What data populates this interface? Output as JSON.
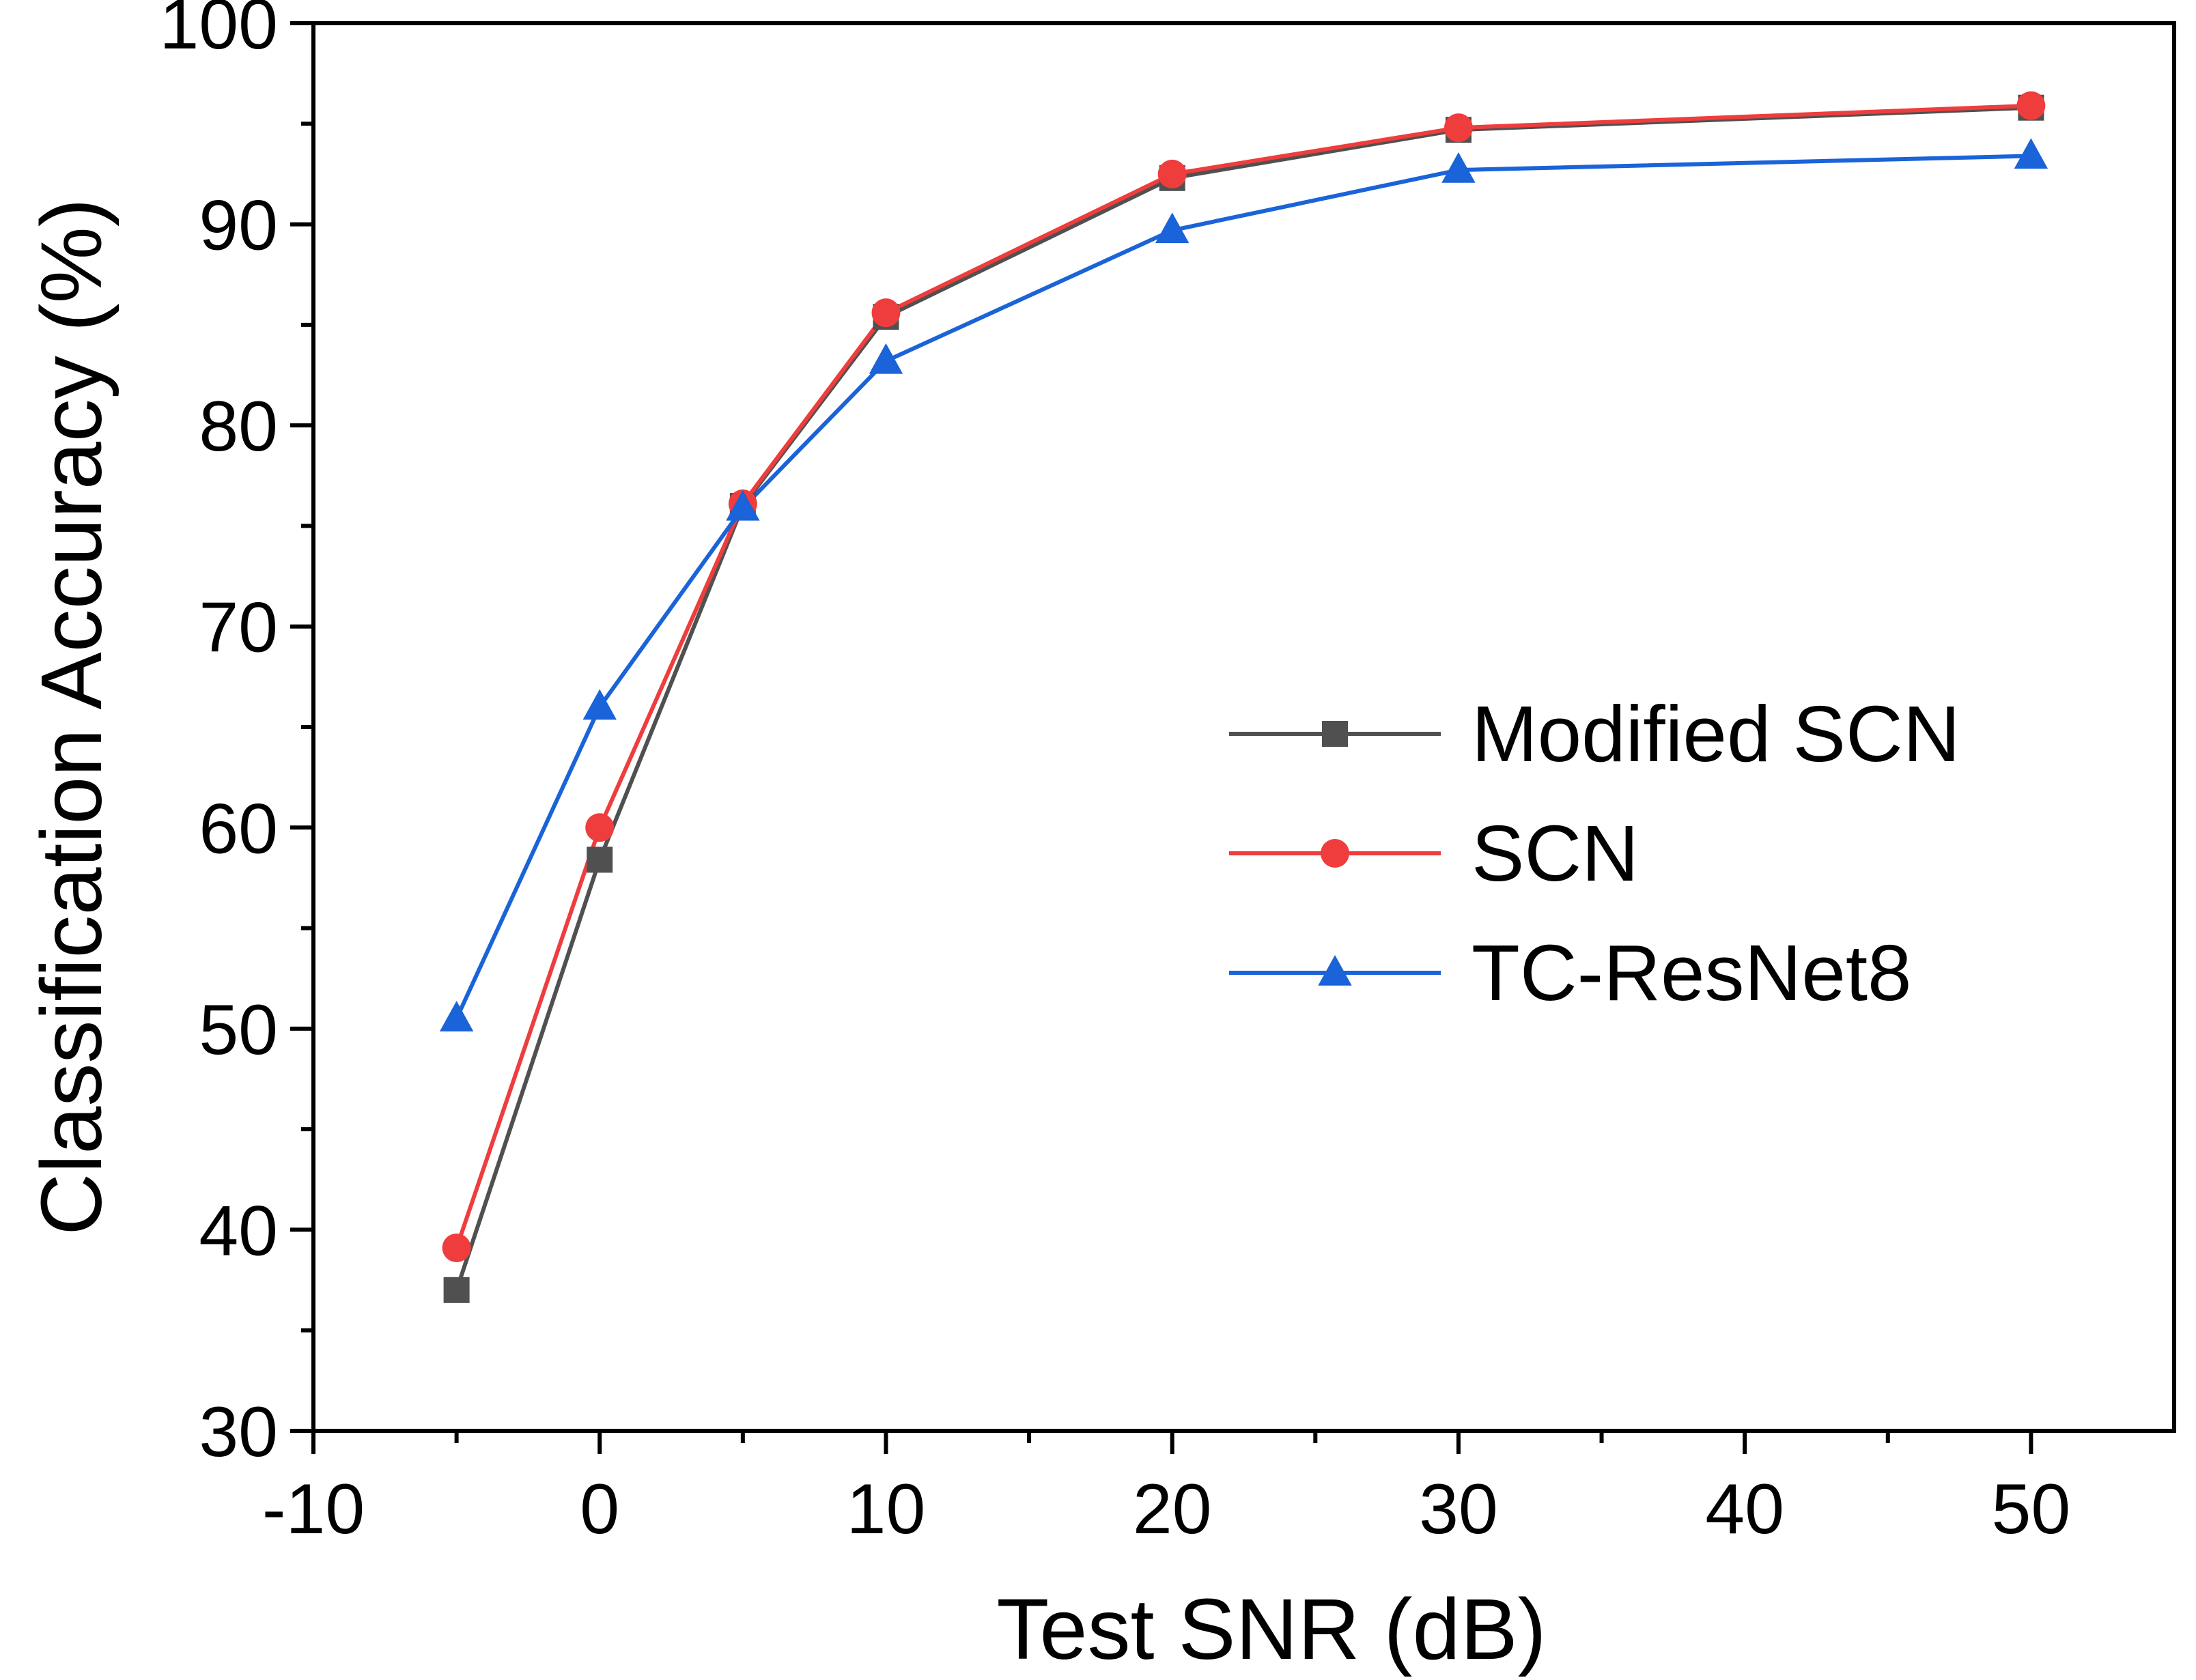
{
  "chart_data": {
    "type": "line",
    "title": "",
    "xlabel": "Test SNR (dB)",
    "ylabel": "Classification Accuracy (%)",
    "xlim": [
      -10,
      55
    ],
    "ylim": [
      30,
      100
    ],
    "x_ticks": [
      -10,
      0,
      10,
      20,
      30,
      40,
      50
    ],
    "y_ticks": [
      30,
      40,
      50,
      60,
      70,
      80,
      90,
      100
    ],
    "x_tick_labels": [
      "-10",
      "0",
      "10",
      "20",
      "30",
      "40",
      "50"
    ],
    "y_tick_labels": [
      "30",
      "40",
      "50",
      "60",
      "70",
      "80",
      "90",
      "100"
    ],
    "grid": false,
    "legend_position": "center-right",
    "x": [
      -5,
      0,
      5,
      10,
      20,
      30,
      50
    ],
    "series": [
      {
        "name": "Modified SCN",
        "marker": "square",
        "color": "#505050",
        "values": [
          37.0,
          58.4,
          76.0,
          85.4,
          92.3,
          94.7,
          95.8
        ]
      },
      {
        "name": "SCN",
        "marker": "circle",
        "color": "#ef3d3d",
        "values": [
          39.1,
          60.0,
          76.1,
          85.6,
          92.5,
          94.8,
          95.9
        ]
      },
      {
        "name": "TC-ResNet8",
        "marker": "triangle",
        "color": "#1a63d8",
        "values": [
          50.5,
          66.0,
          75.9,
          83.2,
          89.7,
          92.7,
          93.4
        ]
      }
    ]
  }
}
